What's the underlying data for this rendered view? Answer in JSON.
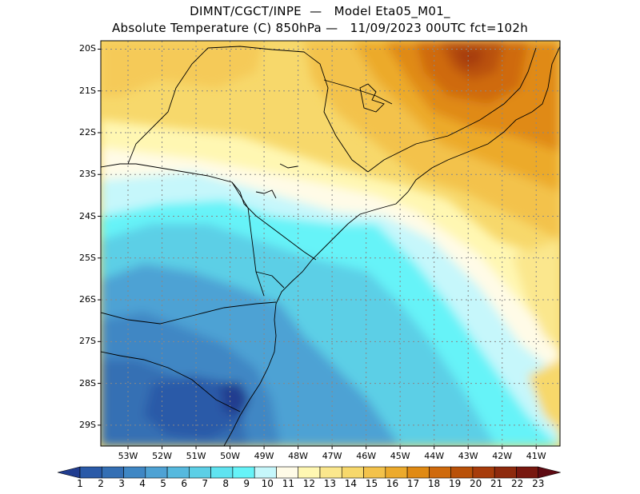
{
  "title_line1": "DIMNT/CGCT/INPE  —   Model Eta05_M01_",
  "title_line2": "Absolute Temperature (C) 850hPa —   11/09/2023 00UTC fct=102h",
  "lat_labels": [
    "20S",
    "21S",
    "22S",
    "23S",
    "24S",
    "25S",
    "26S",
    "27S",
    "28S",
    "29S"
  ],
  "lon_labels": [
    "53W",
    "52W",
    "51W",
    "50W",
    "49W",
    "48W",
    "47W",
    "46W",
    "45W",
    "44W",
    "43W",
    "42W",
    "41W"
  ],
  "colorbar": {
    "labels": [
      "1",
      "2",
      "3",
      "4",
      "5",
      "6",
      "7",
      "8",
      "9",
      "10",
      "11",
      "12",
      "13",
      "14",
      "15",
      "16",
      "17",
      "18",
      "19",
      "20",
      "21",
      "22",
      "23"
    ],
    "colors": [
      "#203c8f",
      "#2a5aa8",
      "#346fb4",
      "#3f87c4",
      "#4ea2d4",
      "#56b9de",
      "#5ccfe6",
      "#5fe3f0",
      "#66f3f8",
      "#c6f7fb",
      "#fffbe7",
      "#fff7b2",
      "#fbe78d",
      "#f7d86b",
      "#f3c24b",
      "#ecaa2c",
      "#e08a14",
      "#cf6a0c",
      "#b95108",
      "#a73c0b",
      "#8e2a0d",
      "#78180f",
      "#5e0a12"
    ]
  },
  "map": {
    "lon_range": [
      -53.8,
      -40.3
    ],
    "lat_range": [
      -29.5,
      -19.8
    ],
    "field": "temperature_850hPa"
  }
}
